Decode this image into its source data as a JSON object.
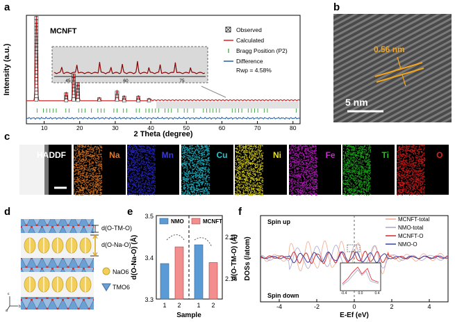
{
  "panels": {
    "a": "a",
    "b": "b",
    "c": "c",
    "d": "d",
    "e": "e",
    "f": "f"
  },
  "a": {
    "title": "MCNFT",
    "ylabel": "Intensity (a.u.)",
    "xlabel": "2 Theta (degree)",
    "xticks": [
      "10",
      "20",
      "30",
      "40",
      "50",
      "60",
      "70",
      "80"
    ],
    "inset_ticks": [
      "45",
      "60",
      "75"
    ],
    "legend": {
      "observed": "Observed",
      "calculated": "Calculated",
      "bragg": "Bragg Position (P2)",
      "difference": "Difference",
      "rwp": "Rwp = 4.58%"
    },
    "colors": {
      "calc": "#e41a1c",
      "diff": "#1f5fa8",
      "bragg": "#2ca02c"
    }
  },
  "b": {
    "spacing": "0.56 nm",
    "scale": "5 nm"
  },
  "c": {
    "tiles": [
      {
        "label": "HADDF",
        "color": "#ffffff",
        "bg": "#000000"
      },
      {
        "label": "Na",
        "color": "#e07a2a",
        "bg": "#c46a1e"
      },
      {
        "label": "Mn",
        "color": "#3b3bd6",
        "bg": "#2222b0"
      },
      {
        "label": "Cu",
        "color": "#20c8d8",
        "bg": "#1aa8b8"
      },
      {
        "label": "Ni",
        "color": "#e8e020",
        "bg": "#c8c010"
      },
      {
        "label": "Fe",
        "color": "#d020d8",
        "bg": "#a818b0"
      },
      {
        "label": "Ti",
        "color": "#22c022",
        "bg": "#18a018"
      },
      {
        "label": "O",
        "color": "#e02020",
        "bg": "#c01818"
      }
    ]
  },
  "d": {
    "d1": "d(O-TM-O)",
    "d2": "d(O-Na-O)",
    "leg1": "NaO6",
    "leg2": "TMO6",
    "axes": [
      "c",
      "a",
      "b"
    ]
  },
  "e": {
    "legend": [
      "NMO",
      "MCNFT"
    ],
    "ylabel_left": "d(O-Na-O) (Å)",
    "ylabel_right": "d(O-TM-O) (Å)",
    "xlabel": "Sample",
    "left_ticks": [
      "3.5",
      "3.4",
      "3.3"
    ],
    "right_ticks": [
      "2.20",
      "2.16"
    ],
    "xticks": [
      "1",
      "2",
      "1",
      "2"
    ]
  },
  "f": {
    "spin_up": "Spin up",
    "spin_down": "Spin down",
    "ylabel": "DOSs (/atom)",
    "xlabel": "E-Ef (eV)",
    "xticks": [
      "-4",
      "-2",
      "0",
      "2",
      "4"
    ],
    "inset_ticks": [
      "-0.4",
      "0.0",
      "0.4"
    ],
    "legend": [
      "MCNFT-total",
      "NMO-total",
      "MCNFT-O",
      "NMO-O"
    ],
    "colors": [
      "#f2a98a",
      "#a9a3cf",
      "#d62728",
      "#3a3f9e"
    ]
  },
  "chart_data": [
    {
      "type": "line",
      "title": "MCNFT",
      "xlabel": "2 Theta (degree)",
      "ylabel": "Intensity (a.u.)",
      "xlim": [
        5,
        82
      ],
      "peaks": [
        {
          "x": 7.8,
          "y": 100
        },
        {
          "x": 16.2,
          "y": 10
        },
        {
          "x": 18.3,
          "y": 32
        },
        {
          "x": 19.5,
          "y": 22
        },
        {
          "x": 25.5,
          "y": 4
        },
        {
          "x": 30.5,
          "y": 12
        },
        {
          "x": 32.5,
          "y": 6
        },
        {
          "x": 36.5,
          "y": 6
        },
        {
          "x": 39.5,
          "y": 3
        }
      ],
      "series": [
        {
          "name": "Observed"
        },
        {
          "name": "Calculated"
        },
        {
          "name": "Bragg Position (P2)"
        },
        {
          "name": "Difference"
        }
      ],
      "annotations": [
        "Rwp = 4.58%"
      ]
    },
    {
      "type": "bar",
      "xlabel": "Sample",
      "categories": [
        "1",
        "2"
      ],
      "series": [
        {
          "name": "d(O-Na-O) (Å)",
          "values": [
            3.385,
            3.425
          ]
        },
        {
          "name": "d(O-TM-O) (Å)",
          "values": [
            2.192,
            2.175
          ]
        }
      ],
      "ylim_left": [
        3.3,
        3.5
      ],
      "ylim_right": [
        2.14,
        2.22
      ],
      "legend": [
        "NMO",
        "MCNFT"
      ]
    },
    {
      "type": "line",
      "xlabel": "E-Ef (eV)",
      "ylabel": "DOSs (/atom)",
      "xlim": [
        -5,
        5
      ],
      "series": [
        {
          "name": "MCNFT-total"
        },
        {
          "name": "NMO-total"
        },
        {
          "name": "MCNFT-O"
        },
        {
          "name": "NMO-O"
        }
      ]
    }
  ]
}
